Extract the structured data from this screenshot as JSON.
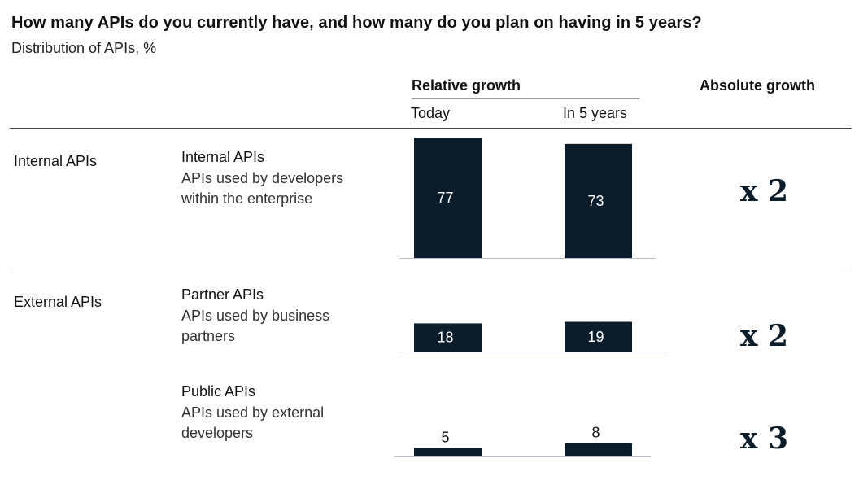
{
  "title": "How many APIs do you currently have, and how many do you plan on having in 5 years?",
  "subtitle": "Distribution of APIs, %",
  "headers": {
    "relative_growth": "Relative growth",
    "today": "Today",
    "in_5_years": "In 5 years",
    "absolute_growth": "Absolute growth"
  },
  "groups": [
    {
      "label": "Internal APIs"
    },
    {
      "label": "External APIs"
    }
  ],
  "rows": [
    {
      "name": "Internal APIs",
      "desc": "APIs used by developers within the enterprise",
      "multiplier": "x 2"
    },
    {
      "name": "Partner APIs",
      "desc": "APIs used by business partners",
      "multiplier": "x 2"
    },
    {
      "name": "Public APIs",
      "desc": "APIs used by external developers",
      "multiplier": "x 3"
    }
  ],
  "colors": {
    "bar": "#0b1c2a",
    "bar_label_inside": "#ffffff",
    "bar_label_outside": "#111111"
  },
  "chart_data": {
    "type": "bar",
    "categories": [
      "Internal APIs",
      "Partner APIs",
      "Public APIs"
    ],
    "series": [
      {
        "name": "Today",
        "values": [
          77,
          18,
          5
        ]
      },
      {
        "name": "In 5 years",
        "values": [
          73,
          19,
          8
        ]
      }
    ],
    "title": "How many APIs do you currently have, and how many do you plan on having in 5 years?",
    "subtitle": "Distribution of APIs, %",
    "absolute_growth": [
      "x 2",
      "x 2",
      "x 3"
    ]
  }
}
